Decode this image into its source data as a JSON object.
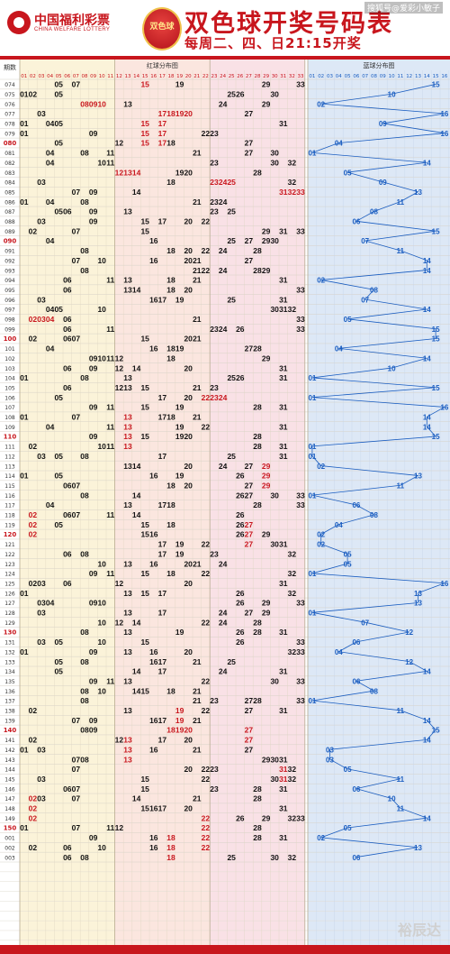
{
  "header": {
    "logo_cn": "中国福利彩票",
    "logo_en": "CHINA WELFARE LOTTERY",
    "game_logo": "双色球",
    "title": "双色球开奖号码表",
    "subtitle": "每周二、四、日21:15开奖",
    "watermark_top": "搜狐号@爱彩小敏子"
  },
  "watermark_bottom": "裕辰达",
  "colors": {
    "red": "#c8161d",
    "zone1": "#fbf3d9",
    "zone2": "#fbe6df",
    "zone3": "#f9e1e6",
    "blue_zone": "#dde8f6",
    "blue_text": "#1a5dc0",
    "red_line": "#c8161d"
  },
  "chart_data": {
    "type": "table",
    "title": "双色球开奖号码表",
    "period_header": "期数",
    "red_zone_label": "红球分布图",
    "blue_zone_label": "蓝球分布图",
    "red_columns": [
      "01",
      "02",
      "03",
      "04",
      "05",
      "06",
      "07",
      "08",
      "09",
      "10",
      "11",
      "12",
      "13",
      "14",
      "15",
      "16",
      "17",
      "18",
      "19",
      "20",
      "21",
      "22",
      "23",
      "24",
      "25",
      "26",
      "27",
      "28",
      "29",
      "30",
      "31",
      "32",
      "33"
    ],
    "blue_columns": [
      "01",
      "02",
      "03",
      "04",
      "05",
      "06",
      "07",
      "08",
      "09",
      "10",
      "11",
      "12",
      "13",
      "14",
      "15",
      "16"
    ],
    "draws": [
      {
        "period": "074",
        "red": [
          5,
          7,
          15,
          19,
          29,
          33
        ],
        "blue": 15,
        "hot": [
          15
        ]
      },
      {
        "period": "075",
        "red": [
          1,
          2,
          5,
          25,
          26,
          30
        ],
        "blue": 10
      },
      {
        "period": "076",
        "red": [
          8,
          9,
          10,
          13,
          24,
          29
        ],
        "blue": 2,
        "hot": [
          8,
          9,
          10
        ]
      },
      {
        "period": "077",
        "red": [
          3,
          17,
          18,
          19,
          20,
          27
        ],
        "blue": 16,
        "hot": [
          17,
          18,
          19,
          20
        ]
      },
      {
        "period": "078",
        "red": [
          1,
          4,
          5,
          15,
          17,
          31
        ],
        "blue": 9,
        "hot": [
          15,
          17
        ]
      },
      {
        "period": "079",
        "red": [
          1,
          9,
          15,
          17,
          22,
          23
        ],
        "blue": 16,
        "hot": [
          15,
          17
        ]
      },
      {
        "period": "080",
        "red": [
          5,
          12,
          15,
          17,
          18,
          27
        ],
        "blue": 4,
        "hot": [
          15,
          17
        ]
      },
      {
        "period": "081",
        "red": [
          4,
          8,
          11,
          21,
          27,
          30
        ],
        "blue": 1
      },
      {
        "period": "082",
        "red": [
          4,
          10,
          11,
          23,
          30,
          32
        ],
        "blue": 14
      },
      {
        "period": "083",
        "red": [
          12,
          13,
          14,
          19,
          20,
          28
        ],
        "blue": 5,
        "hot": [
          12,
          13,
          14
        ]
      },
      {
        "period": "084",
        "red": [
          3,
          18,
          23,
          24,
          25,
          32
        ],
        "blue": 9,
        "hot": [
          23,
          24,
          25
        ]
      },
      {
        "period": "085",
        "red": [
          7,
          9,
          14,
          31,
          32,
          33
        ],
        "blue": 13,
        "hot": [
          31,
          32,
          33
        ]
      },
      {
        "period": "086",
        "red": [
          1,
          4,
          8,
          21,
          23,
          24
        ],
        "blue": 11
      },
      {
        "period": "087",
        "red": [
          5,
          6,
          9,
          13,
          23,
          25
        ],
        "blue": 8
      },
      {
        "period": "088",
        "red": [
          3,
          9,
          15,
          17,
          20,
          22
        ],
        "blue": 6
      },
      {
        "period": "089",
        "red": [
          2,
          7,
          15,
          29,
          31,
          33
        ],
        "blue": 15
      },
      {
        "period": "090",
        "red": [
          4,
          16,
          25,
          27,
          29,
          30
        ],
        "blue": 7
      },
      {
        "period": "091",
        "red": [
          8,
          18,
          20,
          22,
          24,
          28
        ],
        "blue": 11
      },
      {
        "period": "092",
        "red": [
          7,
          10,
          16,
          20,
          21,
          27
        ],
        "blue": 14
      },
      {
        "period": "093",
        "red": [
          8,
          21,
          22,
          24,
          28,
          29
        ],
        "blue": 14
      },
      {
        "period": "094",
        "red": [
          6,
          11,
          13,
          18,
          21,
          31
        ],
        "blue": 2
      },
      {
        "period": "095",
        "red": [
          6,
          13,
          14,
          18,
          20,
          33
        ],
        "blue": 8
      },
      {
        "period": "096",
        "red": [
          3,
          16,
          17,
          19,
          25,
          31
        ],
        "blue": 7
      },
      {
        "period": "097",
        "red": [
          4,
          5,
          10,
          30,
          31,
          32
        ],
        "blue": 14
      },
      {
        "period": "098",
        "red": [
          2,
          3,
          4,
          6,
          21,
          33
        ],
        "blue": 5,
        "hot": [
          2,
          3,
          4
        ]
      },
      {
        "period": "099",
        "red": [
          6,
          11,
          23,
          24,
          26,
          33
        ],
        "blue": 15
      },
      {
        "period": "100",
        "red": [
          2,
          6,
          7,
          15,
          20,
          21
        ],
        "blue": 15
      },
      {
        "period": "101",
        "red": [
          4,
          16,
          18,
          19,
          27,
          28
        ],
        "blue": 4
      },
      {
        "period": "102",
        "red": [
          9,
          10,
          11,
          12,
          18,
          29
        ],
        "blue": 14
      },
      {
        "period": "103",
        "red": [
          6,
          9,
          12,
          14,
          20,
          31
        ],
        "blue": 10
      },
      {
        "period": "104",
        "red": [
          1,
          8,
          13,
          25,
          26,
          31
        ],
        "blue": 1
      },
      {
        "period": "105",
        "red": [
          6,
          12,
          13,
          15,
          21,
          23
        ],
        "blue": 15
      },
      {
        "period": "106",
        "red": [
          5,
          17,
          20,
          22,
          23,
          24
        ],
        "blue": 1,
        "hot": [
          22,
          23,
          24
        ]
      },
      {
        "period": "107",
        "red": [
          9,
          11,
          15,
          19,
          28,
          31
        ],
        "blue": 16
      },
      {
        "period": "108",
        "red": [
          1,
          7,
          13,
          17,
          18,
          21
        ],
        "blue": 14,
        "hot": [
          13
        ]
      },
      {
        "period": "109",
        "red": [
          4,
          11,
          13,
          19,
          22,
          31
        ],
        "blue": 14,
        "hot": [
          13
        ]
      },
      {
        "period": "110",
        "red": [
          9,
          13,
          15,
          19,
          20,
          28
        ],
        "blue": 15,
        "hot": [
          13
        ]
      },
      {
        "period": "111",
        "red": [
          2,
          10,
          11,
          13,
          28,
          31
        ],
        "blue": 1,
        "hot": [
          13
        ]
      },
      {
        "period": "112",
        "red": [
          3,
          5,
          8,
          17,
          25,
          31
        ],
        "blue": 1
      },
      {
        "period": "113",
        "red": [
          13,
          14,
          20,
          24,
          27,
          29
        ],
        "blue": 2,
        "hot": [
          29
        ]
      },
      {
        "period": "114",
        "red": [
          1,
          5,
          16,
          19,
          26,
          29
        ],
        "blue": 13,
        "hot": [
          29
        ]
      },
      {
        "period": "115",
        "red": [
          6,
          7,
          18,
          20,
          27,
          29
        ],
        "blue": 11,
        "hot": [
          29
        ]
      },
      {
        "period": "116",
        "red": [
          8,
          14,
          26,
          27,
          30,
          33
        ],
        "blue": 1
      },
      {
        "period": "117",
        "red": [
          4,
          13,
          17,
          18,
          28,
          33
        ],
        "blue": 6
      },
      {
        "period": "118",
        "red": [
          2,
          6,
          7,
          11,
          14,
          26
        ],
        "blue": 8,
        "hot": [
          2
        ]
      },
      {
        "period": "119",
        "red": [
          2,
          5,
          15,
          18,
          26,
          27
        ],
        "blue": 4,
        "hot": [
          2,
          27
        ]
      },
      {
        "period": "120",
        "red": [
          2,
          15,
          16,
          26,
          27,
          29
        ],
        "blue": 2,
        "hot": [
          2,
          27
        ]
      },
      {
        "period": "121",
        "red": [
          17,
          19,
          22,
          27,
          30,
          31
        ],
        "blue": 2,
        "hot": [
          27
        ]
      },
      {
        "period": "122",
        "red": [
          6,
          8,
          17,
          19,
          23,
          32
        ],
        "blue": 5
      },
      {
        "period": "123",
        "red": [
          10,
          13,
          16,
          20,
          21,
          24
        ],
        "blue": 5
      },
      {
        "period": "124",
        "red": [
          9,
          11,
          15,
          18,
          22,
          32
        ],
        "blue": 1
      },
      {
        "period": "125",
        "red": [
          2,
          3,
          6,
          12,
          20,
          31
        ],
        "blue": 16
      },
      {
        "period": "126",
        "red": [
          1,
          13,
          15,
          17,
          26,
          32
        ],
        "blue": 13
      },
      {
        "period": "127",
        "red": [
          3,
          4,
          9,
          10,
          26,
          29,
          33
        ],
        "blue": 13
      },
      {
        "period": "128",
        "red": [
          3,
          13,
          17,
          24,
          27,
          29
        ],
        "blue": 1
      },
      {
        "period": "129",
        "red": [
          10,
          12,
          14,
          22,
          24,
          28
        ],
        "blue": 7
      },
      {
        "period": "130",
        "red": [
          8,
          13,
          19,
          26,
          28,
          31
        ],
        "blue": 12
      },
      {
        "period": "131",
        "red": [
          3,
          5,
          10,
          15,
          26,
          33
        ],
        "blue": 6
      },
      {
        "period": "132",
        "red": [
          1,
          9,
          13,
          16,
          20,
          32,
          33
        ],
        "blue": 4
      },
      {
        "period": "133",
        "red": [
          5,
          8,
          16,
          17,
          21,
          25
        ],
        "blue": 12
      },
      {
        "period": "134",
        "red": [
          5,
          14,
          17,
          24,
          31
        ],
        "blue": 14
      },
      {
        "period": "135",
        "red": [
          9,
          11,
          13,
          22,
          30,
          33
        ],
        "blue": 6
      },
      {
        "period": "136",
        "red": [
          8,
          10,
          14,
          15,
          18,
          21
        ],
        "blue": 8
      },
      {
        "period": "137",
        "red": [
          8,
          21,
          23,
          27,
          28,
          33
        ],
        "blue": 1
      },
      {
        "period": "138",
        "red": [
          2,
          13,
          19,
          22,
          27,
          31
        ],
        "blue": 11,
        "hot": [
          19
        ]
      },
      {
        "period": "139",
        "red": [
          7,
          9,
          16,
          17,
          19,
          21
        ],
        "blue": 14,
        "hot": [
          19
        ]
      },
      {
        "period": "140",
        "red": [
          8,
          9,
          18,
          19,
          20,
          27
        ],
        "blue": 15,
        "hot": [
          18,
          19,
          20,
          27
        ]
      },
      {
        "period": "141",
        "red": [
          2,
          12,
          13,
          17,
          20,
          27
        ],
        "blue": 14,
        "hot": [
          13,
          27
        ]
      },
      {
        "period": "142",
        "red": [
          1,
          3,
          13,
          16,
          21,
          27
        ],
        "blue": 3,
        "hot": [
          13
        ]
      },
      {
        "period": "143",
        "red": [
          7,
          8,
          13,
          29,
          30,
          31
        ],
        "blue": 3,
        "hot": [
          13
        ]
      },
      {
        "period": "144",
        "red": [
          7,
          20,
          22,
          23,
          31,
          32
        ],
        "blue": 5,
        "hot": [
          31
        ]
      },
      {
        "period": "145",
        "red": [
          3,
          15,
          22,
          30,
          31,
          32
        ],
        "blue": 11,
        "hot": [
          31
        ]
      },
      {
        "period": "146",
        "red": [
          6,
          7,
          15,
          23,
          28,
          31
        ],
        "blue": 6
      },
      {
        "period": "147",
        "red": [
          2,
          3,
          7,
          14,
          21,
          28
        ],
        "blue": 10,
        "hot": [
          2
        ]
      },
      {
        "period": "148",
        "red": [
          2,
          15,
          16,
          17,
          20,
          31
        ],
        "blue": 11,
        "hot": [
          2
        ]
      },
      {
        "period": "149",
        "red": [
          2,
          22,
          26,
          29,
          32,
          33
        ],
        "blue": 14,
        "hot": [
          2,
          22
        ]
      },
      {
        "period": "150",
        "red": [
          1,
          7,
          11,
          12,
          22,
          28
        ],
        "blue": 5,
        "hot": [
          22
        ]
      },
      {
        "period": "001",
        "red": [
          9,
          16,
          18,
          22,
          28,
          31
        ],
        "blue": 2,
        "hot": [
          18,
          22
        ]
      },
      {
        "period": "002",
        "red": [
          2,
          6,
          10,
          16,
          18,
          22
        ],
        "blue": 13,
        "hot": [
          18,
          22
        ]
      },
      {
        "period": "003",
        "red": [
          6,
          8,
          18,
          25,
          30,
          32
        ],
        "blue": 6,
        "hot": [
          18
        ]
      }
    ]
  }
}
